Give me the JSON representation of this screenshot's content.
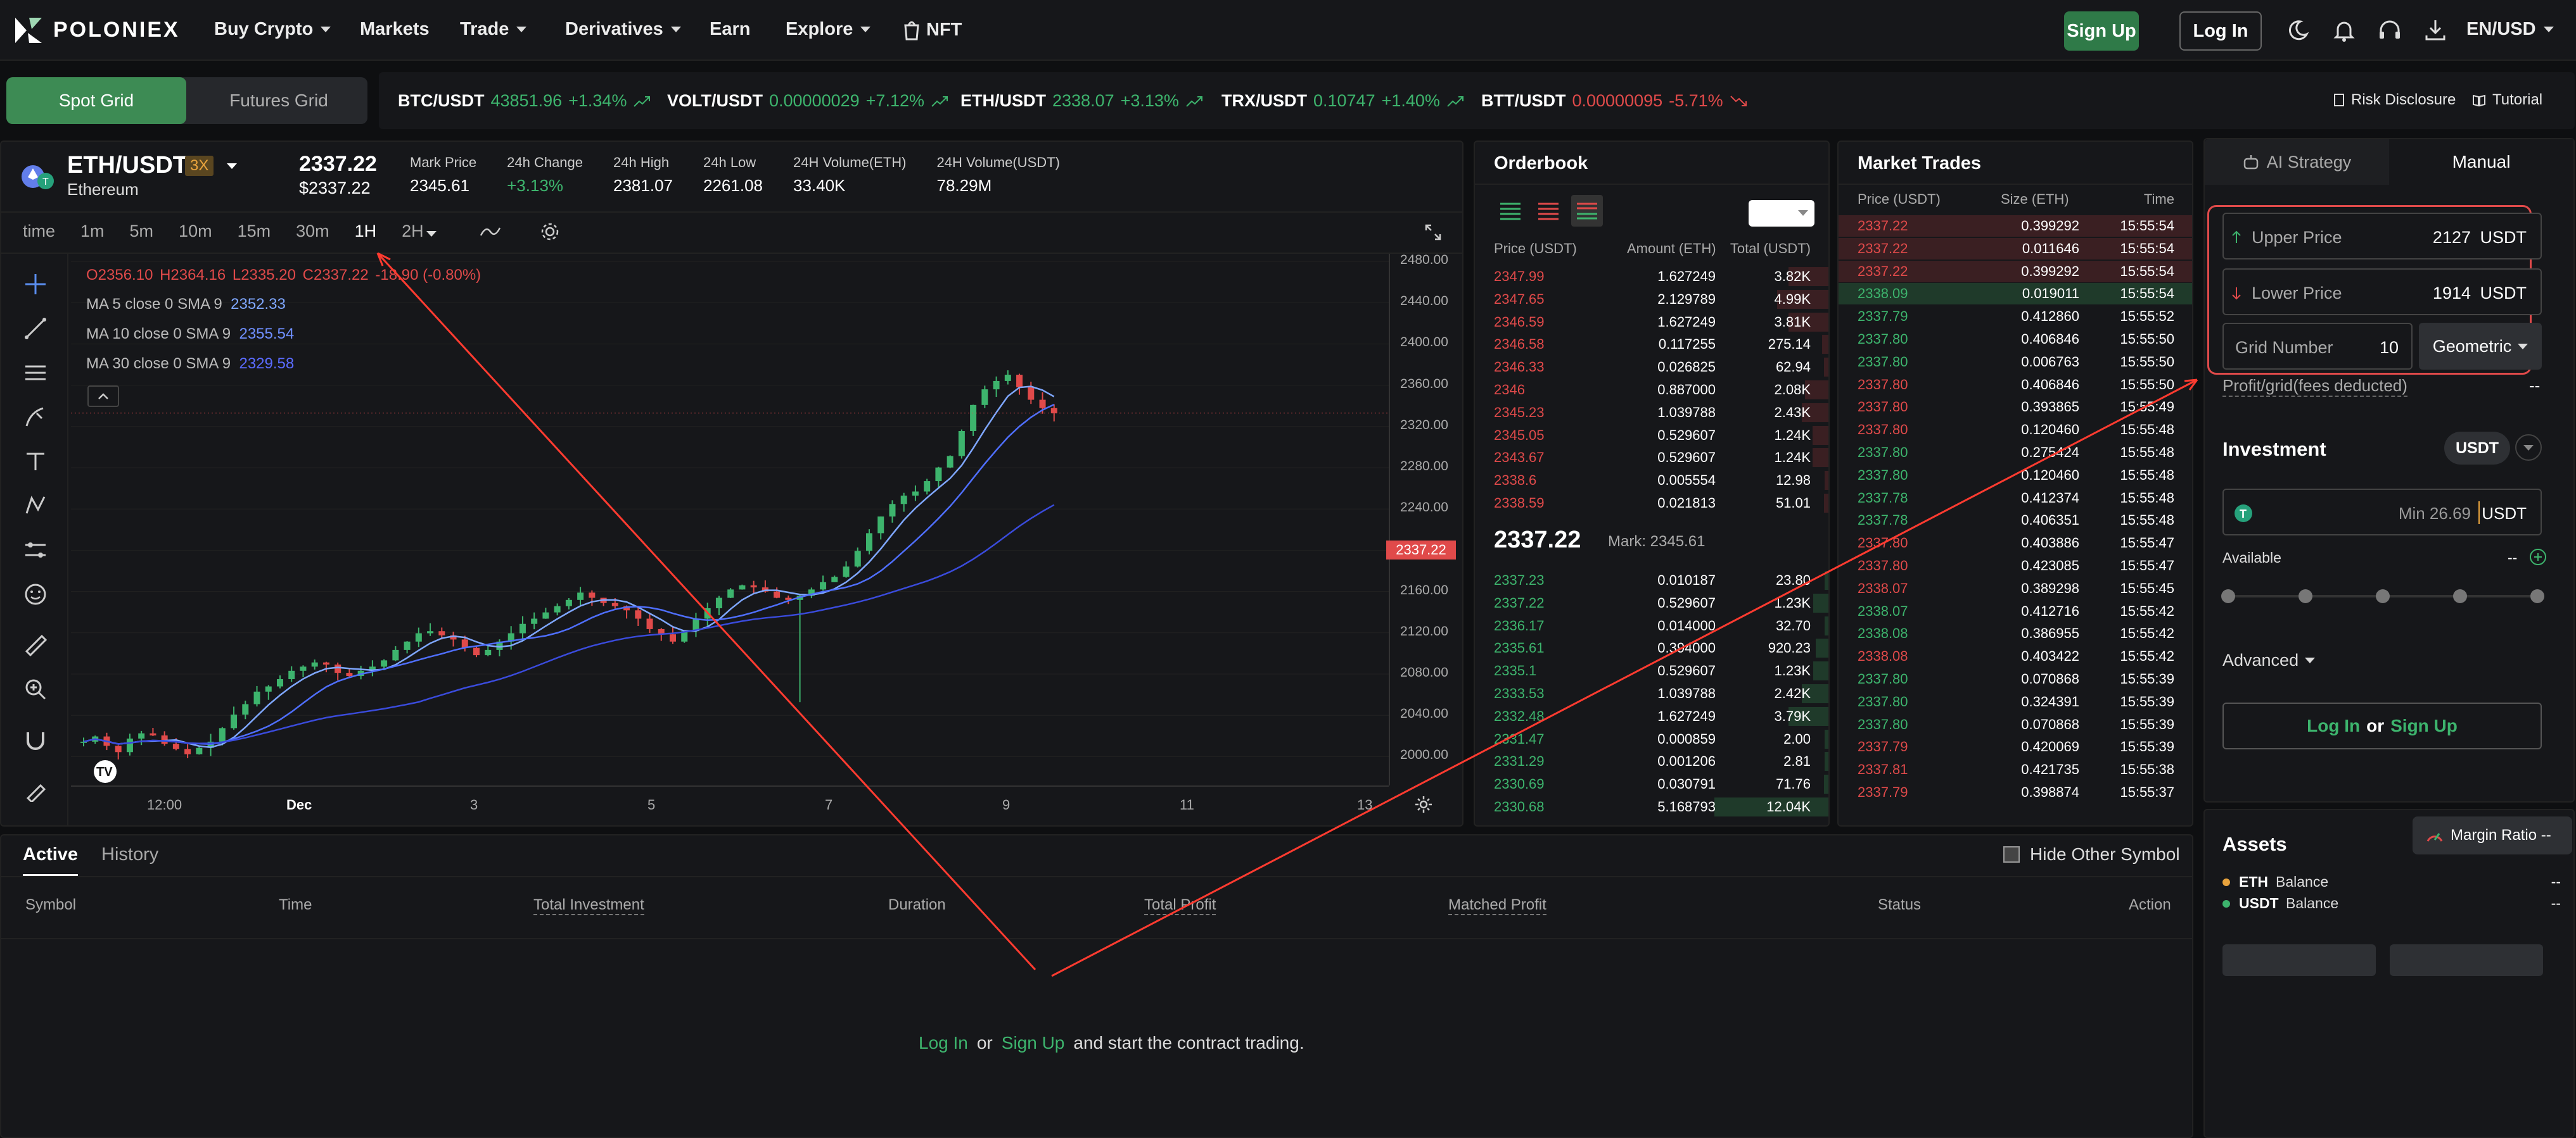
{
  "nav": {
    "brand": "POLONIEX",
    "items": [
      "Buy Crypto",
      "Markets",
      "Trade",
      "Derivatives",
      "Earn",
      "Explore",
      "NFT"
    ],
    "signup": "Sign Up",
    "login": "Log In",
    "lang": "EN/USD"
  },
  "gridtabs": {
    "spot": "Spot Grid",
    "futures": "Futures Grid"
  },
  "tickers": [
    {
      "pair": "BTC/USDT",
      "price": "43851.96",
      "change": "+1.34%",
      "dir": "up"
    },
    {
      "pair": "VOLT/USDT",
      "price": "0.00000029",
      "change": "+7.12%",
      "dir": "up"
    },
    {
      "pair": "ETH/USDT",
      "price": "2338.07",
      "change": "+3.13%",
      "dir": "up"
    },
    {
      "pair": "TRX/USDT",
      "price": "0.10747",
      "change": "+1.40%",
      "dir": "up"
    },
    {
      "pair": "BTT/USDT",
      "price": "0.00000095",
      "change": "-5.71%",
      "dir": "dn"
    }
  ],
  "links": {
    "risk": "Risk Disclosure",
    "tutorial": "Tutorial"
  },
  "market": {
    "pair": "ETH/USDT",
    "leverage": "3X",
    "name": "Ethereum",
    "last": "2337.22",
    "last_usd": "$2337.22",
    "stats": [
      {
        "label": "Mark Price",
        "value": "2345.61",
        "cls": ""
      },
      {
        "label": "24h Change",
        "value": "+3.13%",
        "cls": "up"
      },
      {
        "label": "24h High",
        "value": "2381.07",
        "cls": ""
      },
      {
        "label": "24h Low",
        "value": "2261.08",
        "cls": ""
      },
      {
        "label": "24H Volume(ETH)",
        "value": "33.40K",
        "cls": ""
      },
      {
        "label": "24H Volume(USDT)",
        "value": "78.29M",
        "cls": ""
      }
    ]
  },
  "chart": {
    "intervals": [
      "time",
      "1m",
      "5m",
      "10m",
      "15m",
      "30m",
      "1H",
      "2H"
    ],
    "ohlc": {
      "o": "O2356.10",
      "h": "H2364.16",
      "l": "L2335.20",
      "c": "C2337.22",
      "chg": "-18.90 (-0.80%)"
    },
    "ma": [
      {
        "label": "MA 5 close 0 SMA 9",
        "value": "2352.33",
        "color": "#7fa7ff"
      },
      {
        "label": "MA 10 close 0 SMA 9",
        "value": "2355.54",
        "color": "#6f8fff"
      },
      {
        "label": "MA 30 close 0 SMA 9",
        "value": "2329.58",
        "color": "#5a6bff"
      }
    ],
    "yticks": [
      "2480.00",
      "2440.00",
      "2400.00",
      "2360.00",
      "2320.00",
      "2280.00",
      "2240.00",
      "2200.00",
      "2160.00",
      "2120.00",
      "2080.00",
      "2040.00",
      "2000.00"
    ],
    "xticks": [
      "12:00",
      "Dec",
      "3",
      "5",
      "7",
      "9",
      "11",
      "13"
    ],
    "price_tag": "2337.22"
  },
  "chart_data": {
    "type": "candlestick",
    "series": "ETH/USDT 1H",
    "y_range": [
      1980,
      2490
    ],
    "close_path": [
      2022,
      2027,
      2018,
      2012,
      2025,
      2030,
      2028,
      2020,
      2015,
      2010,
      2016,
      2022,
      2035,
      2048,
      2058,
      2070,
      2075,
      2082,
      2090,
      2094,
      2098,
      2096,
      2088,
      2085,
      2090,
      2094,
      2100,
      2110,
      2118,
      2126,
      2128,
      2124,
      2120,
      2112,
      2105,
      2110,
      2118,
      2126,
      2135,
      2140,
      2146,
      2152,
      2158,
      2165,
      2160,
      2155,
      2152,
      2148,
      2140,
      2130,
      2125,
      2118,
      2128,
      2140,
      2150,
      2160,
      2168,
      2172,
      2170,
      2166,
      2160,
      2158,
      2162,
      2168,
      2175,
      2180,
      2190,
      2205,
      2222,
      2238,
      2250,
      2258,
      2262,
      2272,
      2285,
      2296,
      2320,
      2345,
      2360,
      2368,
      2374,
      2362,
      2350,
      2342,
      2337
    ]
  },
  "orderbook": {
    "title": "Orderbook",
    "headers": [
      "Price (USDT)",
      "Amount (ETH)",
      "Total (USDT)"
    ],
    "asks": [
      [
        "2347.99",
        "1.627249",
        "3.82K"
      ],
      [
        "2347.65",
        "2.129789",
        "4.99K"
      ],
      [
        "2346.59",
        "1.627249",
        "3.81K"
      ],
      [
        "2346.58",
        "0.117255",
        "275.14"
      ],
      [
        "2346.33",
        "0.026825",
        "62.94"
      ],
      [
        "2346",
        "0.887000",
        "2.08K"
      ],
      [
        "2345.23",
        "1.039788",
        "2.43K"
      ],
      [
        "2345.05",
        "0.529607",
        "1.24K"
      ],
      [
        "2343.67",
        "0.529607",
        "1.24K"
      ],
      [
        "2338.6",
        "0.005554",
        "12.98"
      ],
      [
        "2338.59",
        "0.021813",
        "51.01"
      ]
    ],
    "last": "2337.22",
    "mark": "Mark: 2345.61",
    "bids": [
      [
        "2337.23",
        "0.010187",
        "23.80"
      ],
      [
        "2337.22",
        "0.529607",
        "1.23K"
      ],
      [
        "2336.17",
        "0.014000",
        "32.70"
      ],
      [
        "2335.61",
        "0.394000",
        "920.23"
      ],
      [
        "2335.1",
        "0.529607",
        "1.23K"
      ],
      [
        "2333.53",
        "1.039788",
        "2.42K"
      ],
      [
        "2332.48",
        "1.627249",
        "3.79K"
      ],
      [
        "2331.47",
        "0.000859",
        "2.00"
      ],
      [
        "2331.29",
        "0.001206",
        "2.81"
      ],
      [
        "2330.69",
        "0.030791",
        "71.76"
      ],
      [
        "2330.68",
        "5.168793",
        "12.04K"
      ]
    ]
  },
  "trades": {
    "title": "Market Trades",
    "headers": [
      "Price (USDT)",
      "Size (ETH)",
      "Time"
    ],
    "rows": [
      [
        "2337.22",
        "0.399292",
        "15:55:54",
        "dn"
      ],
      [
        "2337.22",
        "0.011646",
        "15:55:54",
        "dn"
      ],
      [
        "2337.22",
        "0.399292",
        "15:55:54",
        "dn"
      ],
      [
        "2338.09",
        "0.019011",
        "15:55:54",
        "up"
      ],
      [
        "2337.79",
        "0.412860",
        "15:55:52",
        "up"
      ],
      [
        "2337.80",
        "0.406846",
        "15:55:50",
        "up"
      ],
      [
        "2337.80",
        "0.006763",
        "15:55:50",
        "up"
      ],
      [
        "2337.80",
        "0.406846",
        "15:55:50",
        "dn"
      ],
      [
        "2337.80",
        "0.393865",
        "15:55:49",
        "dn"
      ],
      [
        "2337.80",
        "0.120460",
        "15:55:48",
        "dn"
      ],
      [
        "2337.80",
        "0.275424",
        "15:55:48",
        "up"
      ],
      [
        "2337.80",
        "0.120460",
        "15:55:48",
        "up"
      ],
      [
        "2337.78",
        "0.412374",
        "15:55:48",
        "up"
      ],
      [
        "2337.78",
        "0.406351",
        "15:55:48",
        "up"
      ],
      [
        "2337.80",
        "0.403886",
        "15:55:47",
        "dn"
      ],
      [
        "2337.80",
        "0.423085",
        "15:55:47",
        "dn"
      ],
      [
        "2338.07",
        "0.389298",
        "15:55:45",
        "dn"
      ],
      [
        "2338.07",
        "0.412716",
        "15:55:42",
        "up"
      ],
      [
        "2338.08",
        "0.386955",
        "15:55:42",
        "up"
      ],
      [
        "2338.08",
        "0.403422",
        "15:55:42",
        "dn"
      ],
      [
        "2337.80",
        "0.070868",
        "15:55:39",
        "up"
      ],
      [
        "2337.80",
        "0.324391",
        "15:55:39",
        "up"
      ],
      [
        "2337.80",
        "0.070868",
        "15:55:39",
        "up"
      ],
      [
        "2337.79",
        "0.420069",
        "15:55:39",
        "dn"
      ],
      [
        "2337.81",
        "0.421735",
        "15:55:38",
        "dn"
      ],
      [
        "2337.79",
        "0.398874",
        "15:55:37",
        "dn"
      ]
    ]
  },
  "order": {
    "tab_ai": "AI Strategy",
    "tab_manual": "Manual",
    "upper_label": "Upper Price",
    "upper_value": "2127",
    "lower_label": "Lower Price",
    "lower_value": "1914",
    "unit": "USDT",
    "grid_label": "Grid Number",
    "grid_value": "10",
    "mode": "Geometric",
    "profit_label": "Profit/grid(fees deducted)",
    "profit_value": "--",
    "investment": "Investment",
    "currency": "USDT",
    "min_placeholder": "Min 26.69",
    "available": "Available",
    "available_value": "--",
    "advanced": "Advanced",
    "login": "Log In",
    "or": "or",
    "signup": "Sign Up"
  },
  "assets": {
    "title": "Assets",
    "margin_ratio": "Margin Ratio --",
    "rows": [
      {
        "coin": "ETH",
        "label": "Balance",
        "value": "--",
        "color": "#e8a33d"
      },
      {
        "coin": "USDT",
        "label": "Balance",
        "value": "--",
        "color": "#3db46d"
      }
    ]
  },
  "bottom": {
    "tabs": [
      "Active",
      "History"
    ],
    "hide_other": "Hide Other Symbol",
    "columns": [
      "Symbol",
      "Time",
      "Total Investment",
      "Duration",
      "Total Profit",
      "Matched Profit",
      "Status",
      "Action"
    ],
    "login": "Log In",
    "or": "or",
    "signup": "Sign Up",
    "msg": "and start the contract trading."
  }
}
